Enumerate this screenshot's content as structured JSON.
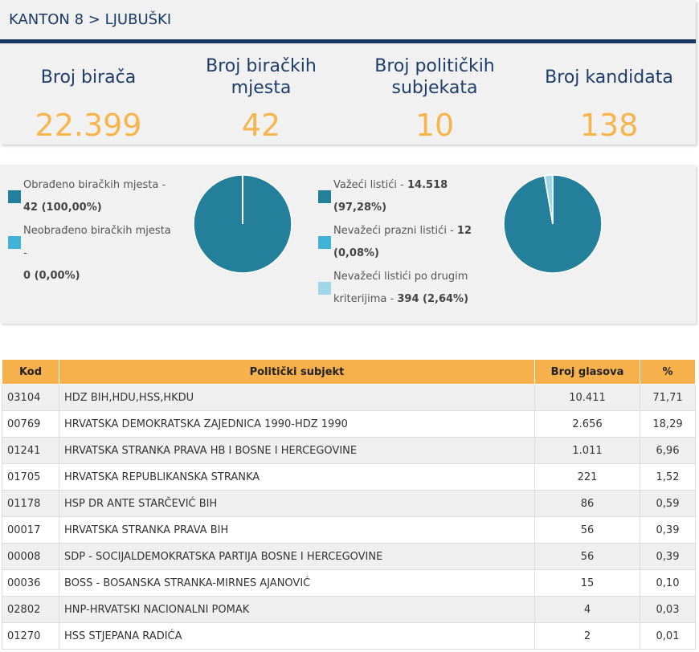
{
  "breadcrumb": "KANTON 8 > LJUBUŠKI",
  "stats": [
    {
      "label": "Broj birača",
      "value": "22.399"
    },
    {
      "label": "Broj biračkih mjesta",
      "value": "42"
    },
    {
      "label": "Broj političkih subjekata",
      "value": "10"
    },
    {
      "label": "Broj kandidata",
      "value": "138"
    }
  ],
  "polling_stations": {
    "processed_label": "Obrađeno biračkih mjesta -",
    "processed_value": "42 (100,00%)",
    "unprocessed_label": "Neobrađeno biračkih mjesta -",
    "unprocessed_value": "0 (0,00%)",
    "processed_pct": 100.0,
    "unprocessed_pct": 0.0
  },
  "ballots": {
    "valid_label": "Važeći listići -",
    "valid_count": "14.518",
    "valid_pct_text": "(97,28%)",
    "blank_label": "Nevažeći prazni listići -",
    "blank_count": "12",
    "blank_pct_text": "(0,08%)",
    "other_label_1": "Nevažeći listići po drugim",
    "other_label_2": "kriterijima -",
    "other_value": "394 (2,64%)",
    "valid_pct": 97.28,
    "blank_pct": 0.08,
    "other_pct": 2.64
  },
  "colors": {
    "primary": "#237f9a",
    "secondary": "#41b3d6",
    "tertiary": "#9fd6e8",
    "accent_orange": "#f6b54d",
    "header_navy": "#17375e"
  },
  "table": {
    "headers": [
      "Kod",
      "Politički subjekt",
      "Broj glasova",
      "%"
    ],
    "rows": [
      {
        "code": "03104",
        "party": "HDZ BIH,HDU,HSS,HKDU",
        "votes": "10.411",
        "pct": "71,71"
      },
      {
        "code": "00769",
        "party": "HRVATSKA DEMOKRATSKA ZAJEDNICA 1990-HDZ 1990",
        "votes": "2.656",
        "pct": "18,29"
      },
      {
        "code": "01241",
        "party": "HRVATSKA STRANKA PRAVA HB I BOSNE I HERCEGOVINE",
        "votes": "1.011",
        "pct": "6,96"
      },
      {
        "code": "01705",
        "party": "HRVATSKA REPUBLIKANSKA STRANKA",
        "votes": "221",
        "pct": "1,52"
      },
      {
        "code": "01178",
        "party": "HSP DR ANTE STARČEVIĆ BIH",
        "votes": "86",
        "pct": "0,59"
      },
      {
        "code": "00017",
        "party": "HRVATSKA STRANKA PRAVA BIH",
        "votes": "56",
        "pct": "0,39"
      },
      {
        "code": "00008",
        "party": "SDP - SOCIJALDEMOKRATSKA PARTIJA BOSNE I HERCEGOVINE",
        "votes": "56",
        "pct": "0,39"
      },
      {
        "code": "00036",
        "party": "BOSS - BOSANSKA STRANKA-MIRNES AJANOVIĆ",
        "votes": "15",
        "pct": "0,10"
      },
      {
        "code": "02802",
        "party": "HNP-HRVATSKI NACIONALNI POMAK",
        "votes": "4",
        "pct": "0,03"
      },
      {
        "code": "01270",
        "party": "HSS STJEPANA RADIĆA",
        "votes": "2",
        "pct": "0,01"
      }
    ]
  }
}
